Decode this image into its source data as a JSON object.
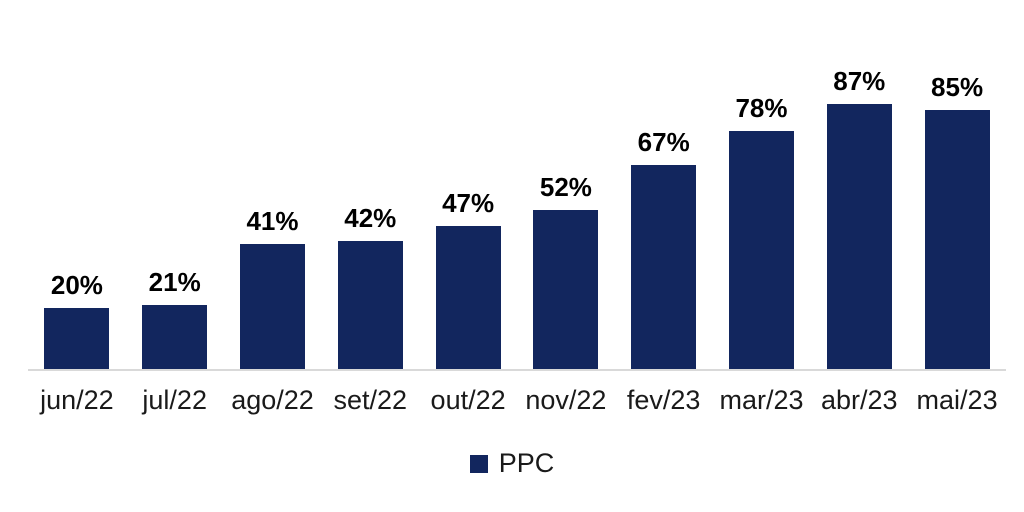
{
  "chart_data": {
    "type": "bar",
    "title": "",
    "categories": [
      "jun/22",
      "jul/22",
      "ago/22",
      "set/22",
      "out/22",
      "nov/22",
      "fev/23",
      "mar/23",
      "abr/23",
      "mai/23"
    ],
    "series": [
      {
        "name": "PPC",
        "values": [
          20,
          21,
          41,
          42,
          47,
          52,
          67,
          78,
          87,
          85
        ]
      }
    ],
    "value_labels": [
      "20%",
      "21%",
      "41%",
      "42%",
      "47%",
      "52%",
      "67%",
      "78%",
      "87%",
      "85%"
    ],
    "ylabel": "",
    "xlabel": "",
    "ylim": [
      0,
      100
    ],
    "grid": false,
    "legend_position": "bottom",
    "bar_color": "#12265e",
    "axis_line_color": "#d9d9d9",
    "value_label_color": "#000000",
    "category_label_color": "#1a1a1a"
  },
  "legend": {
    "label": "PPC",
    "swatch_color": "#12265e"
  }
}
